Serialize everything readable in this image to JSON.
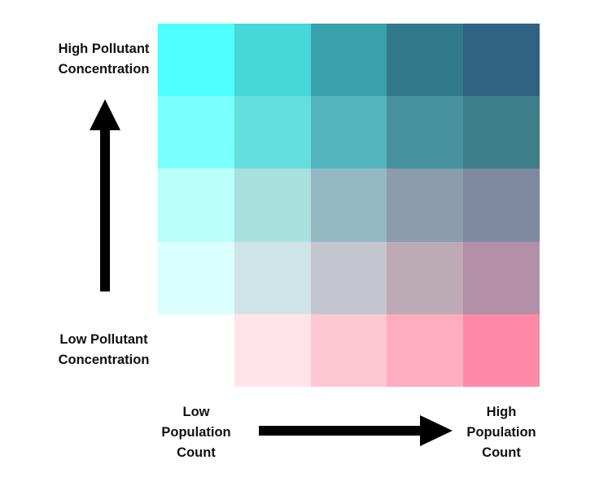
{
  "legend": {
    "y_axis": {
      "high_label": "High Pollutant\nConcentration",
      "low_label": "Low Pollutant\nConcentration"
    },
    "x_axis": {
      "low_label": "Low\nPopulation\nCount",
      "high_label": "High\nPopulation\nCount"
    },
    "grid_colors": [
      [
        "#4dffff",
        "#44d8d8",
        "#38a1ac",
        "#307a8c",
        "#2f6381"
      ],
      [
        "#7affff",
        "#65dede",
        "#54b6bc",
        "#45929d",
        "#3c7e89"
      ],
      [
        "#bbfffb",
        "#a7e0dd",
        "#95b9c3",
        "#8b9dad",
        "#7d89a1"
      ],
      [
        "#dbffff",
        "#cfe4e6",
        "#c3c6cc",
        "#bcaab4",
        "#b38fa8"
      ],
      [
        "#ffffff",
        "#ffe5ea",
        "#ffc7d3",
        "#ffacbf",
        "#ff8aa7"
      ]
    ],
    "arrow_color": "#000000"
  }
}
